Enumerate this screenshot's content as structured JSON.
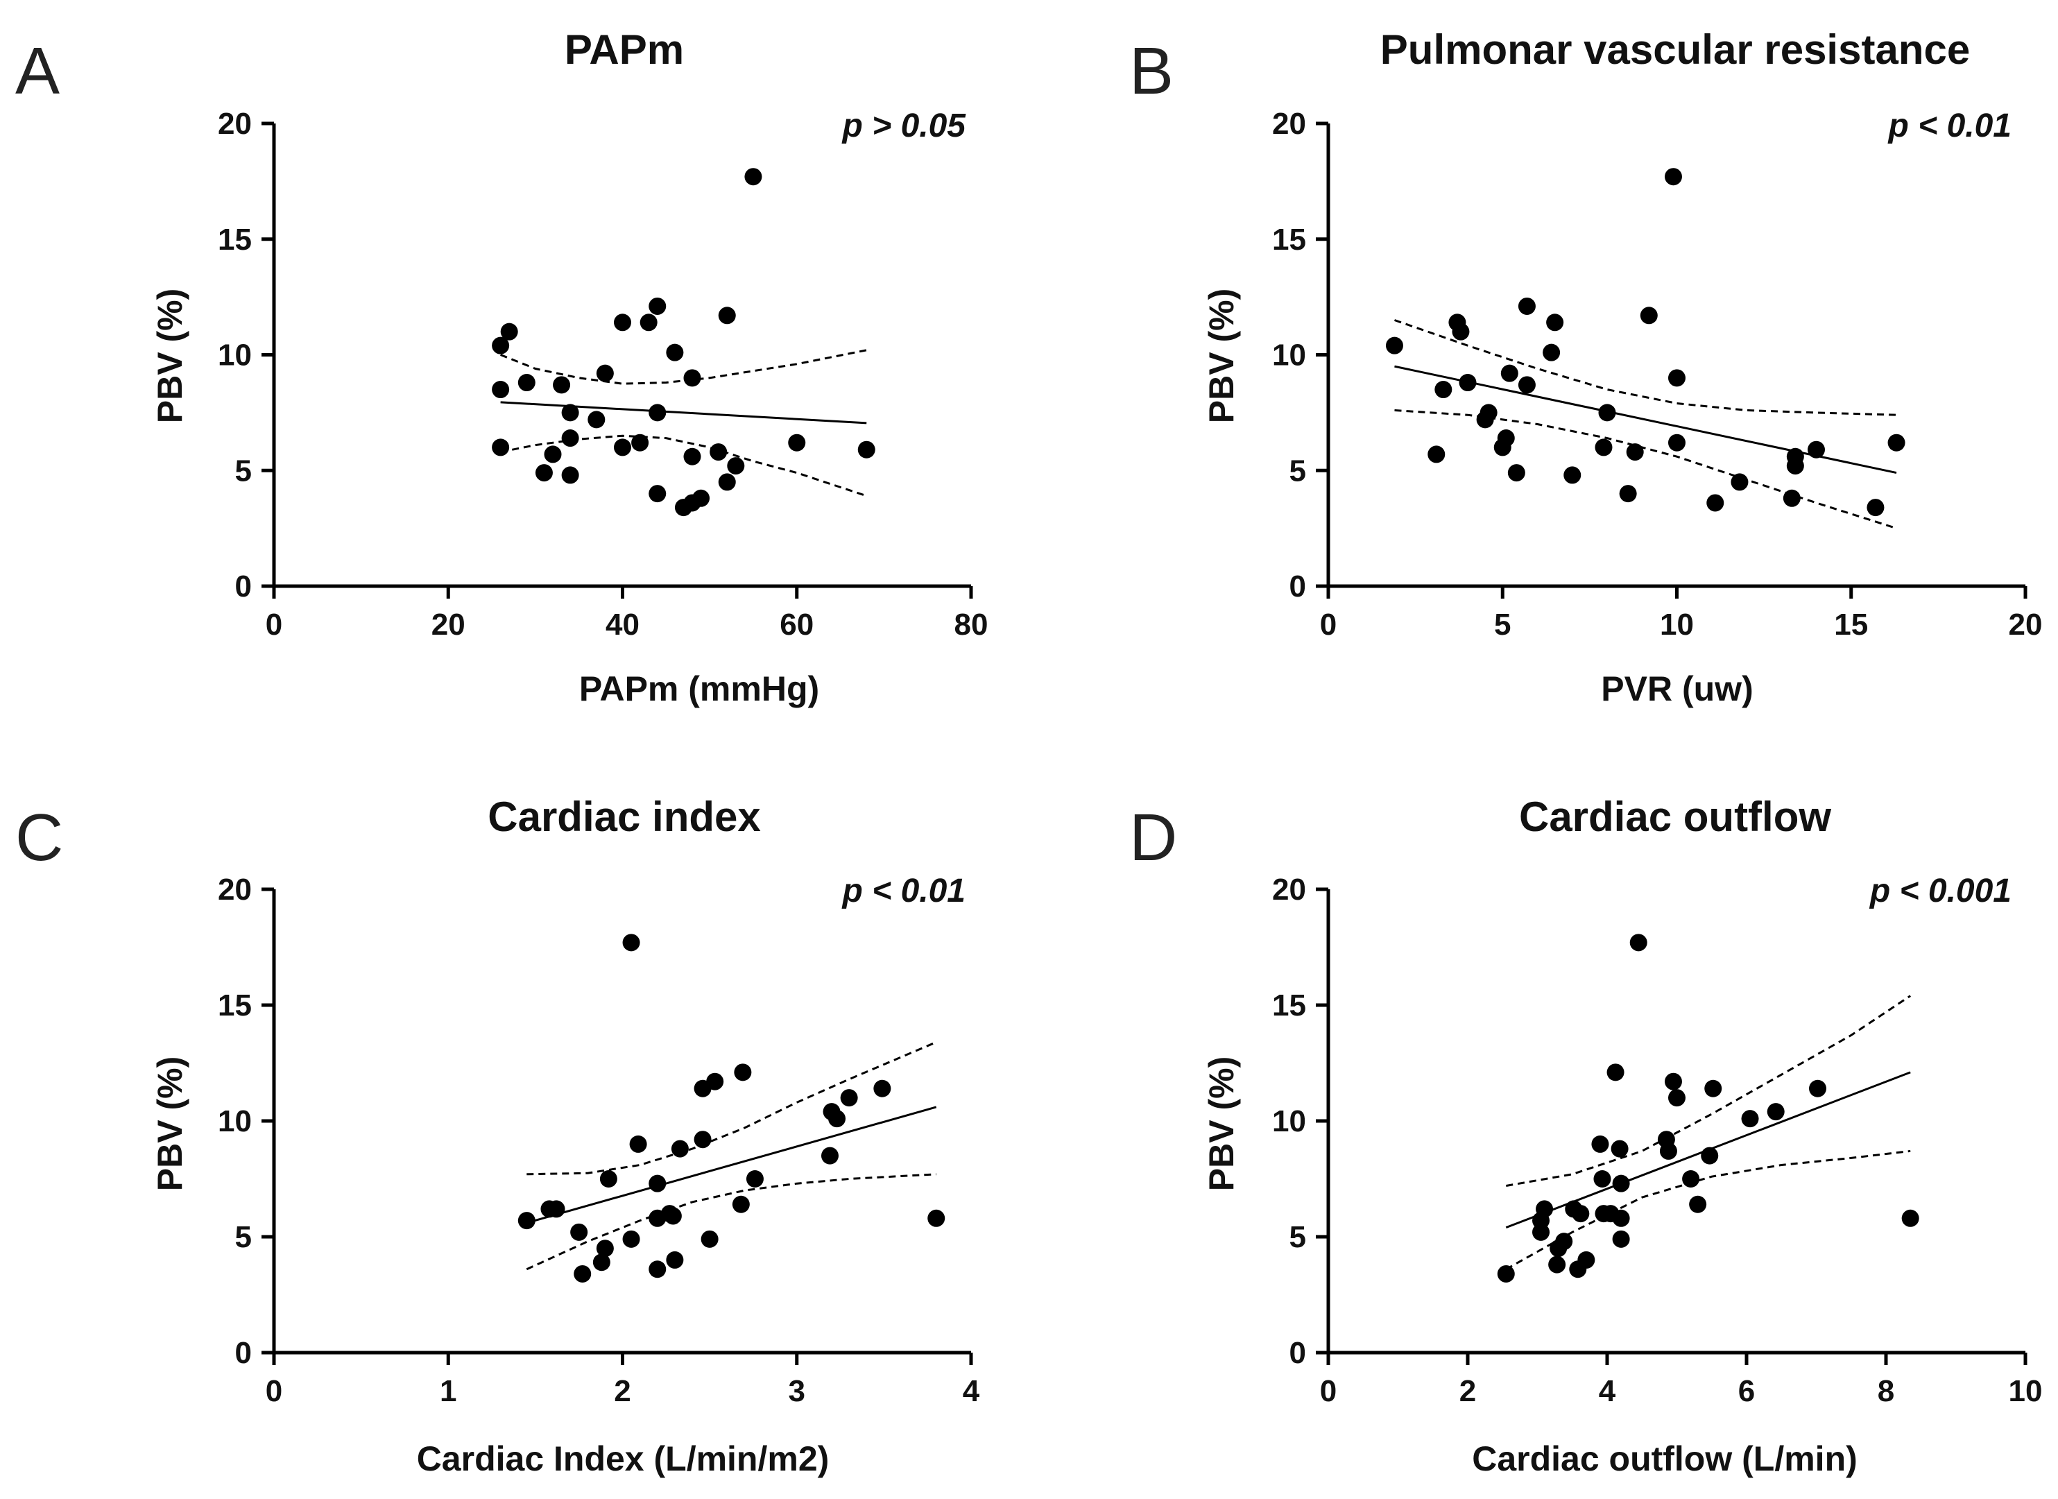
{
  "figure": {
    "panels": [
      {
        "letter": "A",
        "title": "PAPm",
        "pvalue": "p > 0.05"
      },
      {
        "letter": "B",
        "title": "Pulmonar vascular resistance",
        "pvalue": "p < 0.01"
      },
      {
        "letter": "C",
        "title": "Cardiac index",
        "pvalue": "p < 0.01"
      },
      {
        "letter": "D",
        "title": "Cardiac outflow",
        "pvalue": "p < 0.001"
      }
    ]
  },
  "chart_data": [
    {
      "type": "scatter",
      "title": "PAPm",
      "xlabel": "PAPm (mmHg)",
      "ylabel": "PBV (%)",
      "xlim": [
        0,
        80
      ],
      "ylim": [
        0,
        20
      ],
      "xticks": [
        0,
        20,
        40,
        60,
        80
      ],
      "yticks": [
        0,
        5,
        10,
        15,
        20
      ],
      "annotation": "p > 0.05",
      "grid": false,
      "points": [
        [
          26,
          10.4
        ],
        [
          27,
          11.0
        ],
        [
          26,
          8.5
        ],
        [
          29,
          8.8
        ],
        [
          33,
          8.7
        ],
        [
          26,
          6.0
        ],
        [
          32,
          5.7
        ],
        [
          31,
          4.9
        ],
        [
          34,
          4.8
        ],
        [
          34,
          6.4
        ],
        [
          34,
          7.5
        ],
        [
          37,
          7.2
        ],
        [
          38,
          9.2
        ],
        [
          40,
          11.4
        ],
        [
          43,
          11.4
        ],
        [
          44,
          12.1
        ],
        [
          40,
          6.0
        ],
        [
          42,
          6.2
        ],
        [
          44,
          7.5
        ],
        [
          46,
          10.1
        ],
        [
          48,
          9.0
        ],
        [
          48,
          5.6
        ],
        [
          44,
          4.0
        ],
        [
          47,
          3.4
        ],
        [
          48,
          3.6
        ],
        [
          49,
          3.8
        ],
        [
          51,
          5.8
        ],
        [
          52,
          4.5
        ],
        [
          53,
          5.2
        ],
        [
          52,
          11.7
        ],
        [
          55,
          17.7
        ],
        [
          60,
          6.2
        ],
        [
          68,
          5.9
        ]
      ],
      "fit": {
        "x": [
          26,
          68
        ],
        "y": [
          7.95,
          7.05
        ]
      },
      "ci_upper": {
        "x": [
          26,
          30,
          35,
          40,
          45,
          50,
          55,
          60,
          68
        ],
        "y": [
          10.0,
          9.4,
          9.0,
          8.75,
          8.8,
          9.0,
          9.3,
          9.6,
          10.2
        ]
      },
      "ci_lower": {
        "x": [
          26,
          30,
          35,
          40,
          45,
          50,
          55,
          60,
          68
        ],
        "y": [
          5.8,
          6.1,
          6.35,
          6.5,
          6.4,
          6.0,
          5.4,
          4.9,
          3.9
        ]
      }
    },
    {
      "type": "scatter",
      "title": "Pulmonar vascular resistance",
      "xlabel": "PVR (uw)",
      "ylabel": "PBV (%)",
      "xlim": [
        0,
        20
      ],
      "ylim": [
        0,
        20
      ],
      "xticks": [
        0,
        5,
        10,
        15,
        20
      ],
      "yticks": [
        0,
        5,
        10,
        15,
        20
      ],
      "annotation": "p < 0.01",
      "grid": false,
      "points": [
        [
          1.9,
          10.4
        ],
        [
          3.7,
          11.4
        ],
        [
          3.8,
          11.0
        ],
        [
          3.3,
          8.5
        ],
        [
          4.0,
          8.8
        ],
        [
          3.1,
          5.7
        ],
        [
          4.5,
          7.2
        ],
        [
          4.6,
          7.5
        ],
        [
          5.0,
          6.0
        ],
        [
          5.1,
          6.4
        ],
        [
          5.2,
          9.2
        ],
        [
          5.4,
          4.9
        ],
        [
          5.7,
          8.7
        ],
        [
          5.7,
          12.1
        ],
        [
          6.4,
          10.1
        ],
        [
          6.5,
          11.4
        ],
        [
          7.0,
          4.8
        ],
        [
          7.9,
          6.0
        ],
        [
          8.0,
          7.5
        ],
        [
          8.6,
          4.0
        ],
        [
          8.8,
          5.8
        ],
        [
          9.2,
          11.7
        ],
        [
          9.9,
          17.7
        ],
        [
          10.0,
          9.0
        ],
        [
          10.0,
          6.2
        ],
        [
          11.1,
          3.6
        ],
        [
          11.8,
          4.5
        ],
        [
          13.3,
          3.8
        ],
        [
          13.4,
          5.2
        ],
        [
          13.4,
          5.6
        ],
        [
          14.0,
          5.9
        ],
        [
          15.7,
          3.4
        ],
        [
          16.3,
          6.2
        ]
      ],
      "fit": {
        "x": [
          1.9,
          16.3
        ],
        "y": [
          9.5,
          4.9
        ]
      },
      "ci_upper": {
        "x": [
          1.9,
          4,
          6,
          8,
          10,
          12,
          14,
          16.3
        ],
        "y": [
          11.5,
          10.4,
          9.4,
          8.5,
          7.9,
          7.6,
          7.5,
          7.4
        ]
      },
      "ci_lower": {
        "x": [
          1.9,
          4,
          6,
          8,
          10,
          12,
          14,
          16.3
        ],
        "y": [
          7.6,
          7.4,
          7.0,
          6.4,
          5.6,
          4.6,
          3.6,
          2.5
        ]
      }
    },
    {
      "type": "scatter",
      "title": "Cardiac index",
      "xlabel": "Cardiac Index (L/min/m2)",
      "ylabel": "PBV (%)",
      "xlim": [
        0,
        4
      ],
      "ylim": [
        0,
        20
      ],
      "xticks": [
        0,
        1,
        2,
        3,
        4
      ],
      "yticks": [
        0,
        5,
        10,
        15,
        20
      ],
      "annotation": "p < 0.01",
      "grid": false,
      "points": [
        [
          1.45,
          5.7
        ],
        [
          1.58,
          6.2
        ],
        [
          1.62,
          6.2
        ],
        [
          1.75,
          5.2
        ],
        [
          1.77,
          3.4
        ],
        [
          1.88,
          3.9
        ],
        [
          1.9,
          4.5
        ],
        [
          1.92,
          7.5
        ],
        [
          2.05,
          17.7
        ],
        [
          2.05,
          4.9
        ],
        [
          2.09,
          9.0
        ],
        [
          2.2,
          7.3
        ],
        [
          2.2,
          5.8
        ],
        [
          2.2,
          3.6
        ],
        [
          2.27,
          6.0
        ],
        [
          2.29,
          5.9
        ],
        [
          2.3,
          4.0
        ],
        [
          2.33,
          8.8
        ],
        [
          2.46,
          9.2
        ],
        [
          2.46,
          11.4
        ],
        [
          2.5,
          4.9
        ],
        [
          2.53,
          11.7
        ],
        [
          2.68,
          6.4
        ],
        [
          2.69,
          12.1
        ],
        [
          2.76,
          7.5
        ],
        [
          3.19,
          8.5
        ],
        [
          3.2,
          10.4
        ],
        [
          3.23,
          10.1
        ],
        [
          3.3,
          11.0
        ],
        [
          3.49,
          11.4
        ],
        [
          3.8,
          5.8
        ]
      ],
      "fit": {
        "x": [
          1.45,
          3.8
        ],
        "y": [
          5.6,
          10.6
        ]
      },
      "ci_upper": {
        "x": [
          1.45,
          1.8,
          2.1,
          2.4,
          2.7,
          3.0,
          3.3,
          3.8
        ],
        "y": [
          7.7,
          7.75,
          8.1,
          8.8,
          9.7,
          10.8,
          11.8,
          13.4
        ]
      },
      "ci_lower": {
        "x": [
          1.45,
          1.8,
          2.1,
          2.4,
          2.7,
          3.0,
          3.3,
          3.8
        ],
        "y": [
          3.6,
          4.8,
          5.7,
          6.5,
          7.0,
          7.3,
          7.5,
          7.7
        ]
      }
    },
    {
      "type": "scatter",
      "title": "Cardiac outflow",
      "xlabel": "Cardiac outflow (L/min)",
      "ylabel": "PBV (%)",
      "xlim": [
        0,
        10
      ],
      "ylim": [
        0,
        20
      ],
      "xticks": [
        0,
        2,
        4,
        6,
        8,
        10
      ],
      "yticks": [
        0,
        5,
        10,
        15,
        20
      ],
      "annotation": "p < 0.001",
      "grid": false,
      "points": [
        [
          2.55,
          3.4
        ],
        [
          3.05,
          5.7
        ],
        [
          3.05,
          5.2
        ],
        [
          3.1,
          6.2
        ],
        [
          3.28,
          3.8
        ],
        [
          3.3,
          4.5
        ],
        [
          3.38,
          4.8
        ],
        [
          3.52,
          6.2
        ],
        [
          3.58,
          3.6
        ],
        [
          3.62,
          6.0
        ],
        [
          3.7,
          4.0
        ],
        [
          3.9,
          9.0
        ],
        [
          3.93,
          7.5
        ],
        [
          3.95,
          6.0
        ],
        [
          4.05,
          6.0
        ],
        [
          4.12,
          12.1
        ],
        [
          4.18,
          8.8
        ],
        [
          4.2,
          7.3
        ],
        [
          4.2,
          5.8
        ],
        [
          4.2,
          4.9
        ],
        [
          4.45,
          17.7
        ],
        [
          4.85,
          9.2
        ],
        [
          4.88,
          8.7
        ],
        [
          4.95,
          11.7
        ],
        [
          5.0,
          11.0
        ],
        [
          5.2,
          7.5
        ],
        [
          5.3,
          6.4
        ],
        [
          5.47,
          8.5
        ],
        [
          5.52,
          11.4
        ],
        [
          6.05,
          10.1
        ],
        [
          6.42,
          10.4
        ],
        [
          7.02,
          11.4
        ],
        [
          8.35,
          5.8
        ]
      ],
      "fit": {
        "x": [
          2.55,
          8.35
        ],
        "y": [
          5.4,
          12.1
        ]
      },
      "ci_upper": {
        "x": [
          2.55,
          3.5,
          4.5,
          5.5,
          6.5,
          7.5,
          8.35
        ],
        "y": [
          7.2,
          7.7,
          8.7,
          10.3,
          12.0,
          13.7,
          15.4
        ]
      },
      "ci_lower": {
        "x": [
          2.55,
          3.5,
          4.5,
          5.5,
          6.5,
          7.5,
          8.35
        ],
        "y": [
          3.6,
          5.2,
          6.7,
          7.6,
          8.1,
          8.4,
          8.7
        ]
      }
    }
  ]
}
